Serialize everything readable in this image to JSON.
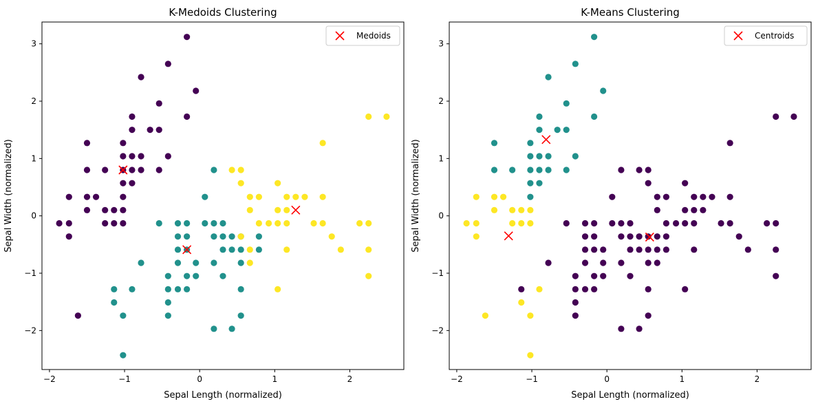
{
  "colors": {
    "purple": "#440154",
    "teal": "#21918c",
    "yellow": "#fde725",
    "marker": "#ff0000"
  },
  "chart_data": [
    {
      "type": "scatter",
      "title": "K-Medoids Clustering",
      "xlabel": "Sepal Length (normalized)",
      "ylabel": "Sepal Width (normalized)",
      "xlim": [
        -2.1,
        2.72
      ],
      "ylim": [
        -2.68,
        3.38
      ],
      "xticks": [
        -2,
        -1,
        0,
        1,
        2
      ],
      "yticks": [
        -2,
        -1,
        0,
        1,
        2,
        3
      ],
      "grid": false,
      "legend": {
        "position": "top-right",
        "label": "Medoids"
      },
      "series": [
        {
          "color": "purple",
          "points": [
            [
              -0.17,
              3.12
            ],
            [
              -0.42,
              2.65
            ],
            [
              -0.78,
              2.42
            ],
            [
              -0.05,
              2.18
            ],
            [
              -0.54,
              1.96
            ],
            [
              -0.17,
              1.73
            ],
            [
              -0.9,
              1.73
            ],
            [
              -0.9,
              1.5
            ],
            [
              -0.66,
              1.5
            ],
            [
              -0.54,
              1.5
            ],
            [
              -1.5,
              1.27
            ],
            [
              -1.02,
              1.27
            ],
            [
              -1.02,
              1.04
            ],
            [
              -0.9,
              1.04
            ],
            [
              -0.78,
              1.04
            ],
            [
              -0.42,
              1.04
            ],
            [
              -1.26,
              0.8
            ],
            [
              -1.5,
              0.8
            ],
            [
              -1.02,
              0.8
            ],
            [
              -0.9,
              0.8
            ],
            [
              -0.78,
              0.8
            ],
            [
              -0.54,
              0.8
            ],
            [
              -1.02,
              0.57
            ],
            [
              -0.9,
              0.57
            ],
            [
              -1.74,
              0.33
            ],
            [
              -1.5,
              0.33
            ],
            [
              -1.38,
              0.33
            ],
            [
              -1.02,
              0.33
            ],
            [
              -1.26,
              0.1
            ],
            [
              -1.14,
              0.1
            ],
            [
              -1.5,
              0.1
            ],
            [
              -1.02,
              0.1
            ],
            [
              -1.87,
              -0.13
            ],
            [
              -1.74,
              -0.13
            ],
            [
              -1.26,
              -0.13
            ],
            [
              -1.14,
              -0.13
            ],
            [
              -1.02,
              -0.13
            ],
            [
              -1.74,
              -0.36
            ],
            [
              -1.62,
              -1.74
            ]
          ]
        },
        {
          "color": "teal",
          "points": [
            [
              0.19,
              0.8
            ],
            [
              0.07,
              0.33
            ],
            [
              -0.54,
              -0.13
            ],
            [
              -0.29,
              -0.13
            ],
            [
              -0.17,
              -0.13
            ],
            [
              0.07,
              -0.13
            ],
            [
              0.19,
              -0.13
            ],
            [
              0.31,
              -0.13
            ],
            [
              -0.29,
              -0.36
            ],
            [
              -0.17,
              -0.36
            ],
            [
              0.19,
              -0.36
            ],
            [
              0.31,
              -0.36
            ],
            [
              0.43,
              -0.36
            ],
            [
              0.55,
              -0.36
            ],
            [
              0.79,
              -0.36
            ],
            [
              -0.29,
              -0.59
            ],
            [
              -0.17,
              -0.59
            ],
            [
              0.31,
              -0.59
            ],
            [
              0.43,
              -0.59
            ],
            [
              0.55,
              -0.59
            ],
            [
              0.79,
              -0.59
            ],
            [
              -0.29,
              -0.82
            ],
            [
              -0.05,
              -0.82
            ],
            [
              0.19,
              -0.82
            ],
            [
              0.55,
              -0.82
            ],
            [
              -0.78,
              -0.82
            ],
            [
              -0.42,
              -1.05
            ],
            [
              -0.17,
              -1.05
            ],
            [
              -0.05,
              -1.05
            ],
            [
              0.31,
              -1.05
            ],
            [
              -0.42,
              -1.28
            ],
            [
              -0.29,
              -1.28
            ],
            [
              -0.17,
              -1.28
            ],
            [
              0.55,
              -1.28
            ],
            [
              -1.14,
              -1.28
            ],
            [
              -0.9,
              -1.28
            ],
            [
              -1.14,
              -1.51
            ],
            [
              -0.42,
              -1.51
            ],
            [
              -1.02,
              -1.74
            ],
            [
              -0.42,
              -1.74
            ],
            [
              0.55,
              -1.74
            ],
            [
              0.19,
              -1.97
            ],
            [
              0.43,
              -1.97
            ],
            [
              -1.02,
              -2.43
            ]
          ]
        },
        {
          "color": "yellow",
          "points": [
            [
              2.25,
              1.73
            ],
            [
              2.49,
              1.73
            ],
            [
              1.64,
              1.27
            ],
            [
              0.43,
              0.8
            ],
            [
              0.55,
              0.8
            ],
            [
              0.55,
              0.57
            ],
            [
              1.04,
              0.57
            ],
            [
              0.67,
              0.33
            ],
            [
              0.79,
              0.33
            ],
            [
              1.16,
              0.33
            ],
            [
              1.28,
              0.33
            ],
            [
              1.4,
              0.33
            ],
            [
              1.64,
              0.33
            ],
            [
              0.67,
              0.1
            ],
            [
              1.04,
              0.1
            ],
            [
              1.16,
              0.1
            ],
            [
              0.79,
              -0.13
            ],
            [
              0.92,
              -0.13
            ],
            [
              1.04,
              -0.13
            ],
            [
              1.16,
              -0.13
            ],
            [
              1.52,
              -0.13
            ],
            [
              1.64,
              -0.13
            ],
            [
              2.13,
              -0.13
            ],
            [
              2.25,
              -0.13
            ],
            [
              0.55,
              -0.36
            ],
            [
              1.76,
              -0.36
            ],
            [
              0.67,
              -0.59
            ],
            [
              1.16,
              -0.59
            ],
            [
              1.88,
              -0.59
            ],
            [
              2.25,
              -0.59
            ],
            [
              0.67,
              -0.82
            ],
            [
              2.25,
              -1.05
            ],
            [
              1.04,
              -1.28
            ]
          ]
        }
      ],
      "centers": [
        [
          -1.02,
          0.8
        ],
        [
          -0.17,
          -0.59
        ],
        [
          1.28,
          0.1
        ]
      ]
    },
    {
      "type": "scatter",
      "title": "K-Means Clustering",
      "xlabel": "Sepal Length (normalized)",
      "ylabel": "Sepal Width (normalized)",
      "xlim": [
        -2.1,
        2.72
      ],
      "ylim": [
        -2.68,
        3.38
      ],
      "xticks": [
        -2,
        -1,
        0,
        1,
        2
      ],
      "yticks": [
        -2,
        -1,
        0,
        1,
        2,
        3
      ],
      "grid": false,
      "legend": {
        "position": "top-right",
        "label": "Centroids"
      },
      "series": [
        {
          "color": "purple",
          "points": [
            [
              2.25,
              1.73
            ],
            [
              2.49,
              1.73
            ],
            [
              1.64,
              1.27
            ],
            [
              0.19,
              0.8
            ],
            [
              0.43,
              0.8
            ],
            [
              0.55,
              0.8
            ],
            [
              0.55,
              0.57
            ],
            [
              1.04,
              0.57
            ],
            [
              0.07,
              0.33
            ],
            [
              0.67,
              0.33
            ],
            [
              0.79,
              0.33
            ],
            [
              1.16,
              0.33
            ],
            [
              1.28,
              0.33
            ],
            [
              1.4,
              0.33
            ],
            [
              1.64,
              0.33
            ],
            [
              0.67,
              0.1
            ],
            [
              1.04,
              0.1
            ],
            [
              1.16,
              0.1
            ],
            [
              1.28,
              0.1
            ],
            [
              -0.54,
              -0.13
            ],
            [
              -0.29,
              -0.13
            ],
            [
              -0.17,
              -0.13
            ],
            [
              0.07,
              -0.13
            ],
            [
              0.19,
              -0.13
            ],
            [
              0.31,
              -0.13
            ],
            [
              0.79,
              -0.13
            ],
            [
              0.92,
              -0.13
            ],
            [
              1.04,
              -0.13
            ],
            [
              1.16,
              -0.13
            ],
            [
              1.52,
              -0.13
            ],
            [
              1.64,
              -0.13
            ],
            [
              2.13,
              -0.13
            ],
            [
              2.25,
              -0.13
            ],
            [
              -0.29,
              -0.36
            ],
            [
              -0.17,
              -0.36
            ],
            [
              0.19,
              -0.36
            ],
            [
              0.31,
              -0.36
            ],
            [
              0.43,
              -0.36
            ],
            [
              0.55,
              -0.36
            ],
            [
              0.67,
              -0.36
            ],
            [
              0.79,
              -0.36
            ],
            [
              1.76,
              -0.36
            ],
            [
              -0.29,
              -0.59
            ],
            [
              -0.17,
              -0.59
            ],
            [
              -0.05,
              -0.59
            ],
            [
              0.31,
              -0.59
            ],
            [
              0.43,
              -0.59
            ],
            [
              0.55,
              -0.59
            ],
            [
              0.67,
              -0.59
            ],
            [
              0.79,
              -0.59
            ],
            [
              1.16,
              -0.59
            ],
            [
              1.88,
              -0.59
            ],
            [
              2.25,
              -0.59
            ],
            [
              -0.78,
              -0.82
            ],
            [
              -0.29,
              -0.82
            ],
            [
              -0.05,
              -0.82
            ],
            [
              0.19,
              -0.82
            ],
            [
              0.55,
              -0.82
            ],
            [
              0.67,
              -0.82
            ],
            [
              -0.42,
              -1.05
            ],
            [
              -0.17,
              -1.05
            ],
            [
              -0.05,
              -1.05
            ],
            [
              0.31,
              -1.05
            ],
            [
              2.25,
              -1.05
            ],
            [
              -1.14,
              -1.28
            ],
            [
              -0.42,
              -1.28
            ],
            [
              -0.29,
              -1.28
            ],
            [
              -0.17,
              -1.28
            ],
            [
              0.55,
              -1.28
            ],
            [
              1.04,
              -1.28
            ],
            [
              -0.42,
              -1.51
            ],
            [
              -0.42,
              -1.74
            ],
            [
              0.55,
              -1.74
            ],
            [
              0.19,
              -1.97
            ],
            [
              0.43,
              -1.97
            ]
          ]
        },
        {
          "color": "teal",
          "points": [
            [
              -0.17,
              3.12
            ],
            [
              -0.42,
              2.65
            ],
            [
              -0.78,
              2.42
            ],
            [
              -0.05,
              2.18
            ],
            [
              -0.54,
              1.96
            ],
            [
              -0.17,
              1.73
            ],
            [
              -0.9,
              1.73
            ],
            [
              -0.9,
              1.5
            ],
            [
              -0.66,
              1.5
            ],
            [
              -0.54,
              1.5
            ],
            [
              -1.5,
              1.27
            ],
            [
              -1.02,
              1.27
            ],
            [
              -1.02,
              1.04
            ],
            [
              -0.9,
              1.04
            ],
            [
              -0.78,
              1.04
            ],
            [
              -0.42,
              1.04
            ],
            [
              -1.26,
              0.8
            ],
            [
              -1.5,
              0.8
            ],
            [
              -1.02,
              0.8
            ],
            [
              -0.9,
              0.8
            ],
            [
              -0.78,
              0.8
            ],
            [
              -0.54,
              0.8
            ],
            [
              -1.02,
              0.57
            ],
            [
              -0.9,
              0.57
            ],
            [
              -1.02,
              0.33
            ]
          ]
        },
        {
          "color": "yellow",
          "points": [
            [
              -1.74,
              0.33
            ],
            [
              -1.5,
              0.33
            ],
            [
              -1.38,
              0.33
            ],
            [
              -1.26,
              0.1
            ],
            [
              -1.14,
              0.1
            ],
            [
              -1.5,
              0.1
            ],
            [
              -1.02,
              0.1
            ],
            [
              -1.87,
              -0.13
            ],
            [
              -1.74,
              -0.13
            ],
            [
              -1.26,
              -0.13
            ],
            [
              -1.14,
              -0.13
            ],
            [
              -1.02,
              -0.13
            ],
            [
              -1.74,
              -0.36
            ],
            [
              -0.9,
              -1.28
            ],
            [
              -1.14,
              -1.51
            ],
            [
              -1.62,
              -1.74
            ],
            [
              -1.02,
              -1.74
            ],
            [
              -1.02,
              -2.43
            ]
          ]
        }
      ],
      "centers": [
        [
          -0.81,
          1.33
        ],
        [
          -1.31,
          -0.35
        ],
        [
          0.57,
          -0.37
        ]
      ]
    }
  ]
}
